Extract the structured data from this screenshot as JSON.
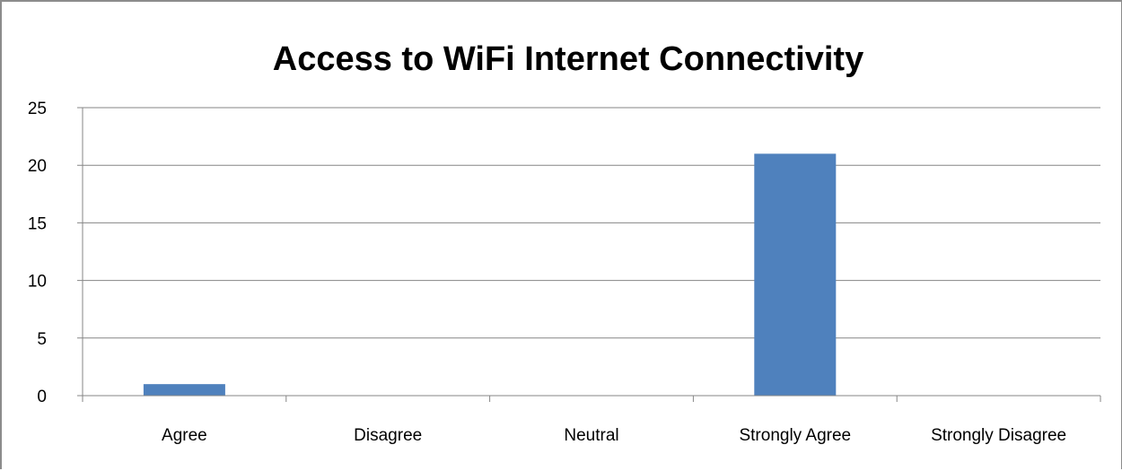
{
  "chart_data": {
    "type": "bar",
    "title": "Access to WiFi Internet Connectivity",
    "xlabel": "",
    "ylabel": "",
    "categories": [
      "Agree",
      "Disagree",
      "Neutral",
      "Strongly Agree",
      "Strongly Disagree"
    ],
    "values": [
      1,
      0,
      0,
      21,
      0
    ],
    "ylim": [
      0,
      25
    ],
    "yticks": [
      "0",
      "5",
      "10",
      "15",
      "20",
      "25"
    ],
    "grid": true,
    "legend": "none",
    "bar_color": "#4f81bd",
    "grid_color": "#868686"
  }
}
